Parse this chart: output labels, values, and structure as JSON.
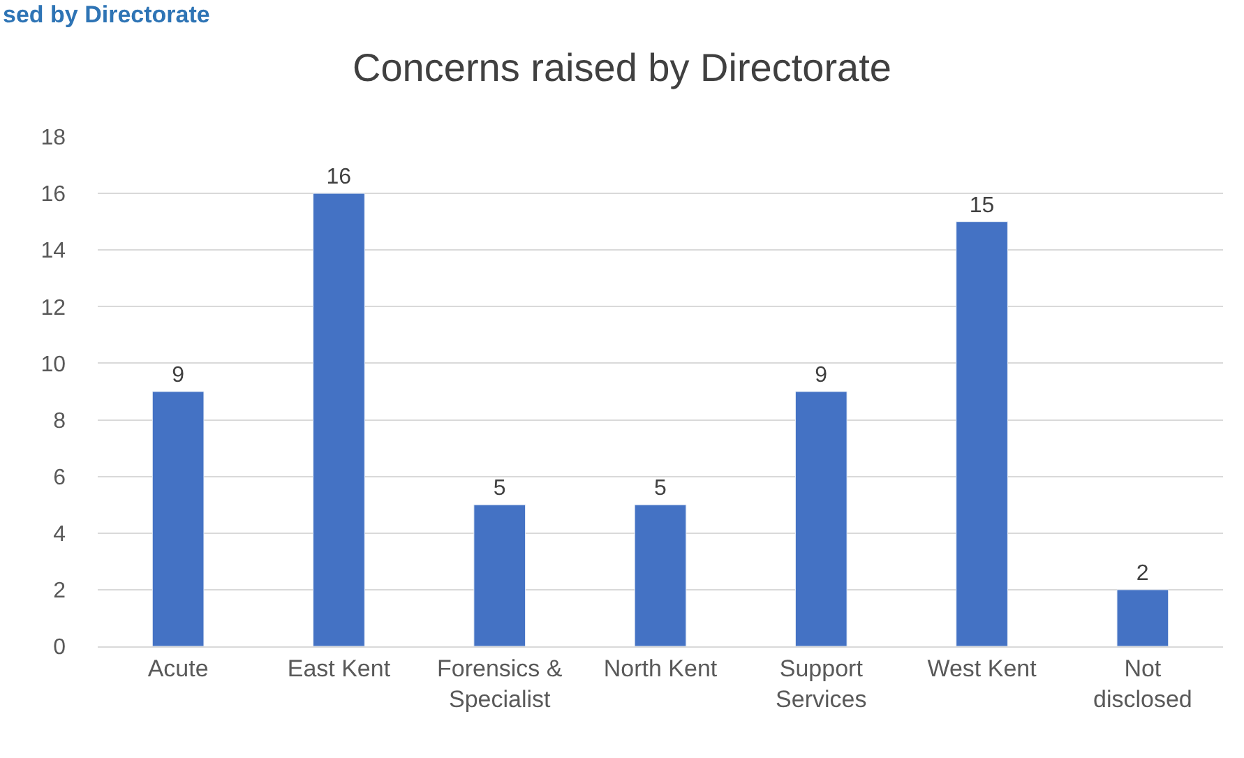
{
  "chart_data": {
    "type": "bar",
    "title": "Concerns raised by Directorate",
    "annotations": [
      "sed by Directorate"
    ],
    "categories": [
      "Acute",
      "East Kent",
      "Forensics &\nSpecialist",
      "North Kent",
      "Support\nServices",
      "West Kent",
      "Not\ndisclosed"
    ],
    "values": [
      9,
      16,
      5,
      5,
      9,
      15,
      2
    ],
    "color": "#4472c4",
    "ylim": [
      0,
      18
    ],
    "yticks": [
      0,
      2,
      4,
      6,
      8,
      10,
      12,
      14,
      16,
      18
    ],
    "grid": "y",
    "data_labels": true,
    "legend": false
  }
}
